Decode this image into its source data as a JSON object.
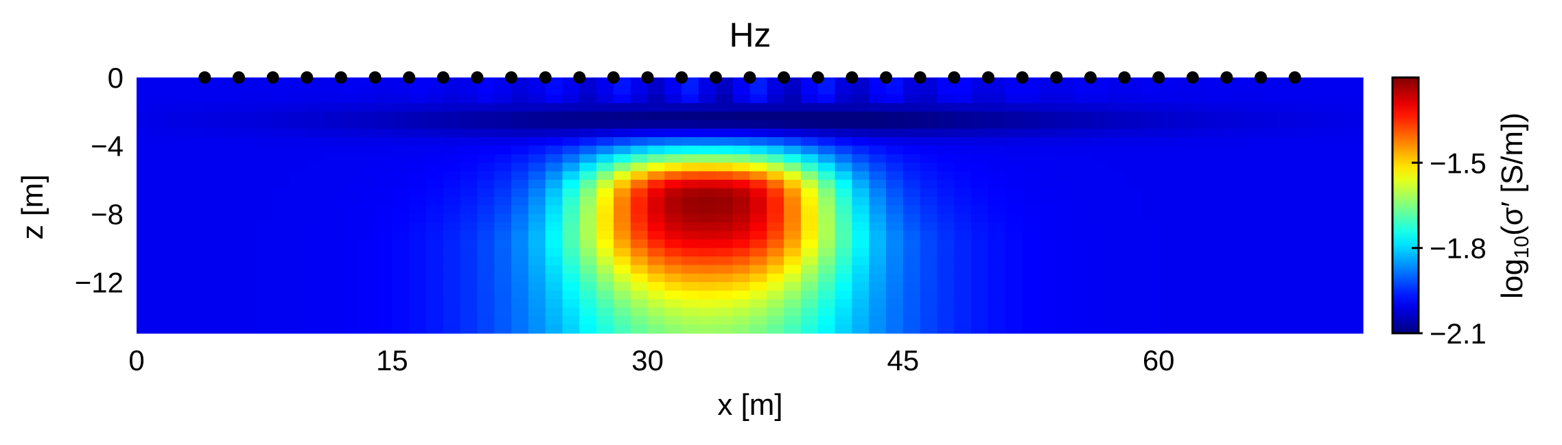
{
  "chart_data": {
    "type": "heatmap",
    "title": "Hz",
    "xlabel": "x [m]",
    "ylabel": "z [m]",
    "xlim": [
      0,
      72
    ],
    "ylim": [
      -15,
      0
    ],
    "x_ticks": [
      0,
      15,
      30,
      45,
      60
    ],
    "y_ticks": [
      0,
      -4,
      -8,
      -12
    ],
    "grid": false,
    "colormap": "jet",
    "colorbar": {
      "label": "log10(σ′) [S/m])",
      "label_base": "log",
      "label_sub": "10",
      "label_rest": "(σ′ [S/m])",
      "range": [
        -2.1,
        -1.2
      ],
      "ticks": [
        -2.1,
        -1.8,
        -1.5
      ]
    },
    "anomaly": {
      "type": "conductive-body",
      "center_x": 33.5,
      "center_z": -7.2,
      "peak_value": -1.22,
      "background_value": -2.0,
      "near_surface_resistive_layer_z": -2.5
    },
    "receivers": {
      "z": 0,
      "x": [
        4,
        6,
        8,
        10,
        12,
        14,
        16,
        18,
        20,
        22,
        24,
        26,
        28,
        30,
        32,
        34,
        36,
        38,
        40,
        42,
        44,
        46,
        48,
        50,
        52,
        54,
        56,
        58,
        60,
        62,
        64,
        66,
        68
      ]
    }
  }
}
